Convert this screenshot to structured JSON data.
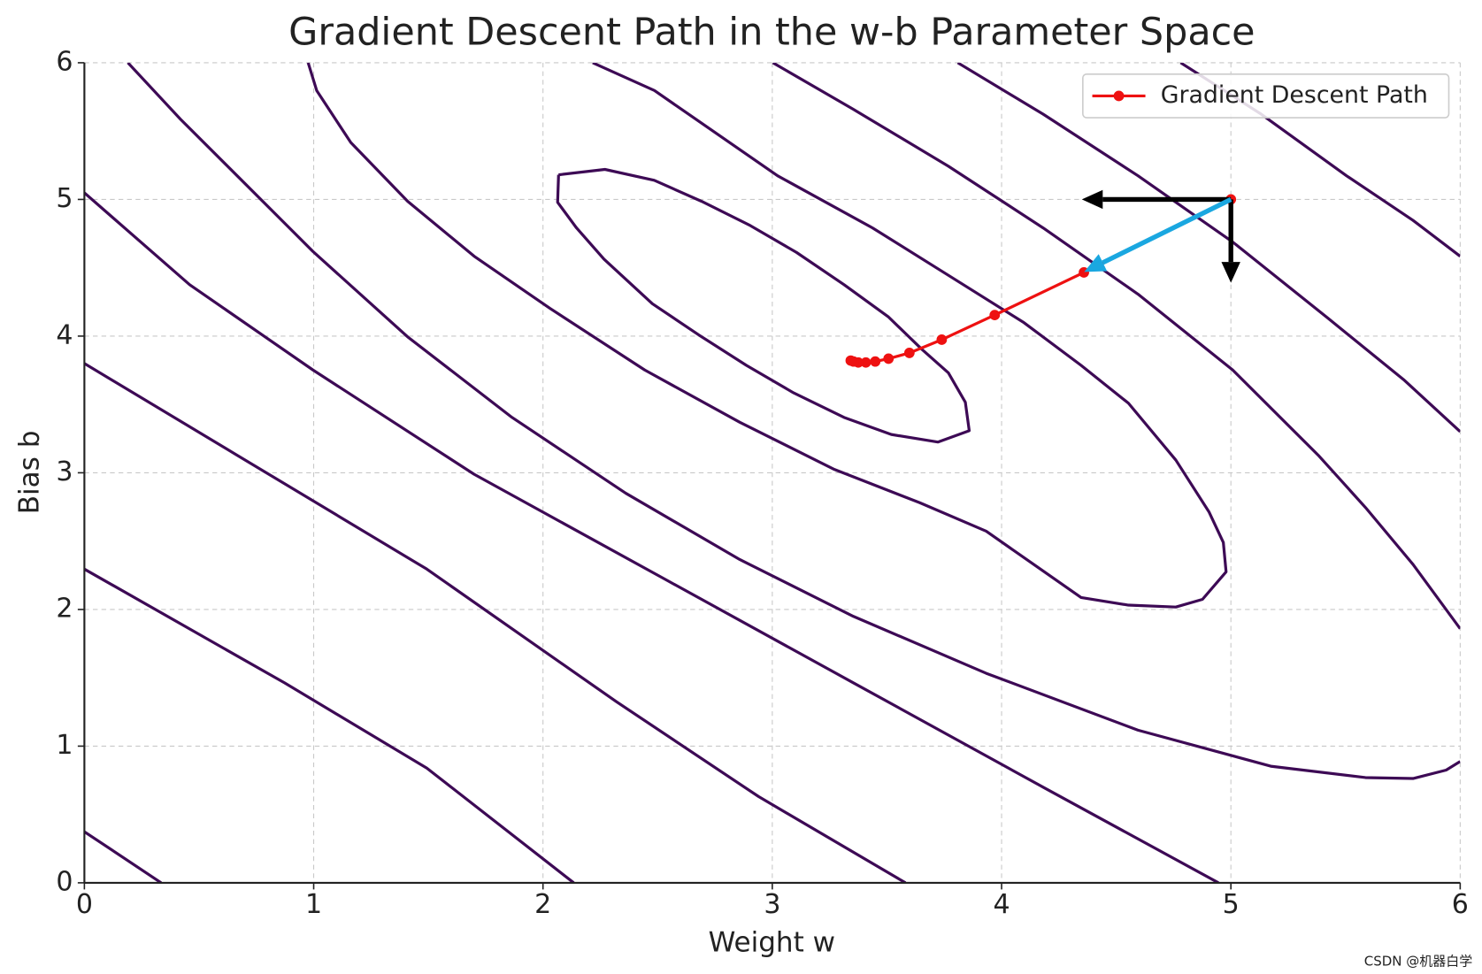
{
  "chart_data": {
    "type": "contour",
    "title": "Gradient Descent Path in the w-b Parameter Space",
    "xlabel": "Weight w",
    "ylabel": "Bias b",
    "xlim": [
      0,
      6
    ],
    "ylim": [
      0,
      6
    ],
    "xticks": [
      0,
      1,
      2,
      3,
      4,
      5,
      6
    ],
    "yticks": [
      0,
      1,
      2,
      3,
      4,
      5,
      6
    ],
    "grid": true,
    "legend": "upper right",
    "contour_color": "#3d0a55",
    "contours": [
      {
        "x": [
          2.068,
          2.27,
          2.485,
          2.692,
          2.899,
          3.106,
          3.313,
          3.507,
          3.652,
          3.768,
          3.842,
          3.859,
          3.722,
          3.519,
          3.313,
          3.093,
          2.887,
          2.68,
          2.477,
          2.266,
          2.146,
          2.064,
          2.068
        ],
        "y": [
          5.18,
          5.22,
          5.14,
          4.986,
          4.813,
          4.612,
          4.376,
          4.14,
          3.904,
          3.731,
          3.516,
          3.308,
          3.225,
          3.28,
          3.405,
          3.585,
          3.786,
          4.008,
          4.237,
          4.563,
          4.792,
          4.979,
          5.18
        ]
      },
      {
        "x": [
          0.976,
          1.013,
          1.162,
          1.41,
          1.7,
          2.031,
          2.444,
          2.858,
          3.271,
          3.643,
          3.933,
          4.347,
          4.553,
          4.76,
          4.876,
          4.979,
          4.967,
          4.905,
          4.76,
          4.553,
          4.347,
          4.098,
          3.768,
          3.437,
          3.023,
          2.486,
          2.217
        ],
        "y": [
          6.0,
          5.797,
          5.416,
          4.986,
          4.584,
          4.202,
          3.752,
          3.37,
          3.024,
          2.781,
          2.573,
          2.087,
          2.032,
          2.018,
          2.074,
          2.275,
          2.49,
          2.712,
          3.093,
          3.509,
          3.786,
          4.098,
          4.445,
          4.792,
          5.173,
          5.797,
          6.0
        ]
      },
      {
        "x": [
          0.19,
          0.418,
          0.666,
          0.997,
          1.41,
          1.865,
          2.361,
          2.858,
          3.354,
          3.933,
          4.595,
          5.174,
          5.587,
          5.794,
          5.939,
          6.0
        ],
        "y": [
          6.0,
          5.589,
          5.173,
          4.619,
          3.994,
          3.405,
          2.85,
          2.365,
          1.949,
          1.533,
          1.117,
          0.853,
          0.77,
          0.763,
          0.825,
          0.888
        ]
      },
      {
        "x": [
          3.003,
          3.354,
          3.768,
          4.181,
          4.595,
          5.008,
          5.381,
          5.587,
          5.794,
          6.0
        ],
        "y": [
          6.0,
          5.659,
          5.243,
          4.792,
          4.307,
          3.752,
          3.128,
          2.746,
          2.33,
          1.859
        ]
      },
      {
        "x": [
          3.809,
          4.181,
          4.595,
          5.008,
          5.422,
          5.753,
          6.0
        ],
        "y": [
          6.0,
          5.624,
          5.173,
          4.688,
          4.133,
          3.682,
          3.301
        ]
      },
      {
        "x": [
          4.781,
          5.132,
          5.504,
          5.794,
          6.0
        ],
        "y": [
          6.0,
          5.624,
          5.173,
          4.847,
          4.584
        ]
      },
      {
        "x": [
          0,
          0.459,
          0.997,
          1.7,
          2.527,
          3.354,
          4.181,
          4.946
        ],
        "y": [
          5.048,
          4.376,
          3.752,
          2.989,
          2.226,
          1.463,
          0.7,
          0
        ]
      },
      {
        "x": [
          0,
          0.666,
          1.493,
          2.32,
          2.94,
          3.581
        ],
        "y": [
          3.8,
          3.128,
          2.295,
          1.325,
          0.631,
          0
        ]
      },
      {
        "x": [
          0,
          0.873,
          1.493,
          2.134
        ],
        "y": [
          2.295,
          1.463,
          0.839,
          0
        ]
      },
      {
        "x": [
          0,
          0.335
        ],
        "y": [
          0.374,
          0
        ]
      }
    ],
    "series": [
      {
        "name": "Gradient Descent Path",
        "color": "#ee1111",
        "x": [
          5.0,
          4.359,
          3.97,
          3.739,
          3.598,
          3.507,
          3.449,
          3.408,
          3.375,
          3.354,
          3.342
        ],
        "y": [
          5.0,
          4.466,
          4.154,
          3.974,
          3.877,
          3.835,
          3.814,
          3.807,
          3.807,
          3.814,
          3.821
        ]
      }
    ],
    "arrows": [
      {
        "x": [
          5.0,
          4.35
        ],
        "y": [
          5.0,
          5.0
        ],
        "color": "#000000"
      },
      {
        "x": [
          5.0,
          5.0
        ],
        "y": [
          5.0,
          4.39
        ],
        "color": "#000000"
      },
      {
        "x": [
          5.0,
          4.36
        ],
        "y": [
          5.0,
          4.47
        ],
        "color": "#1aa7e0"
      }
    ],
    "watermark": "CSDN @机器白学"
  }
}
